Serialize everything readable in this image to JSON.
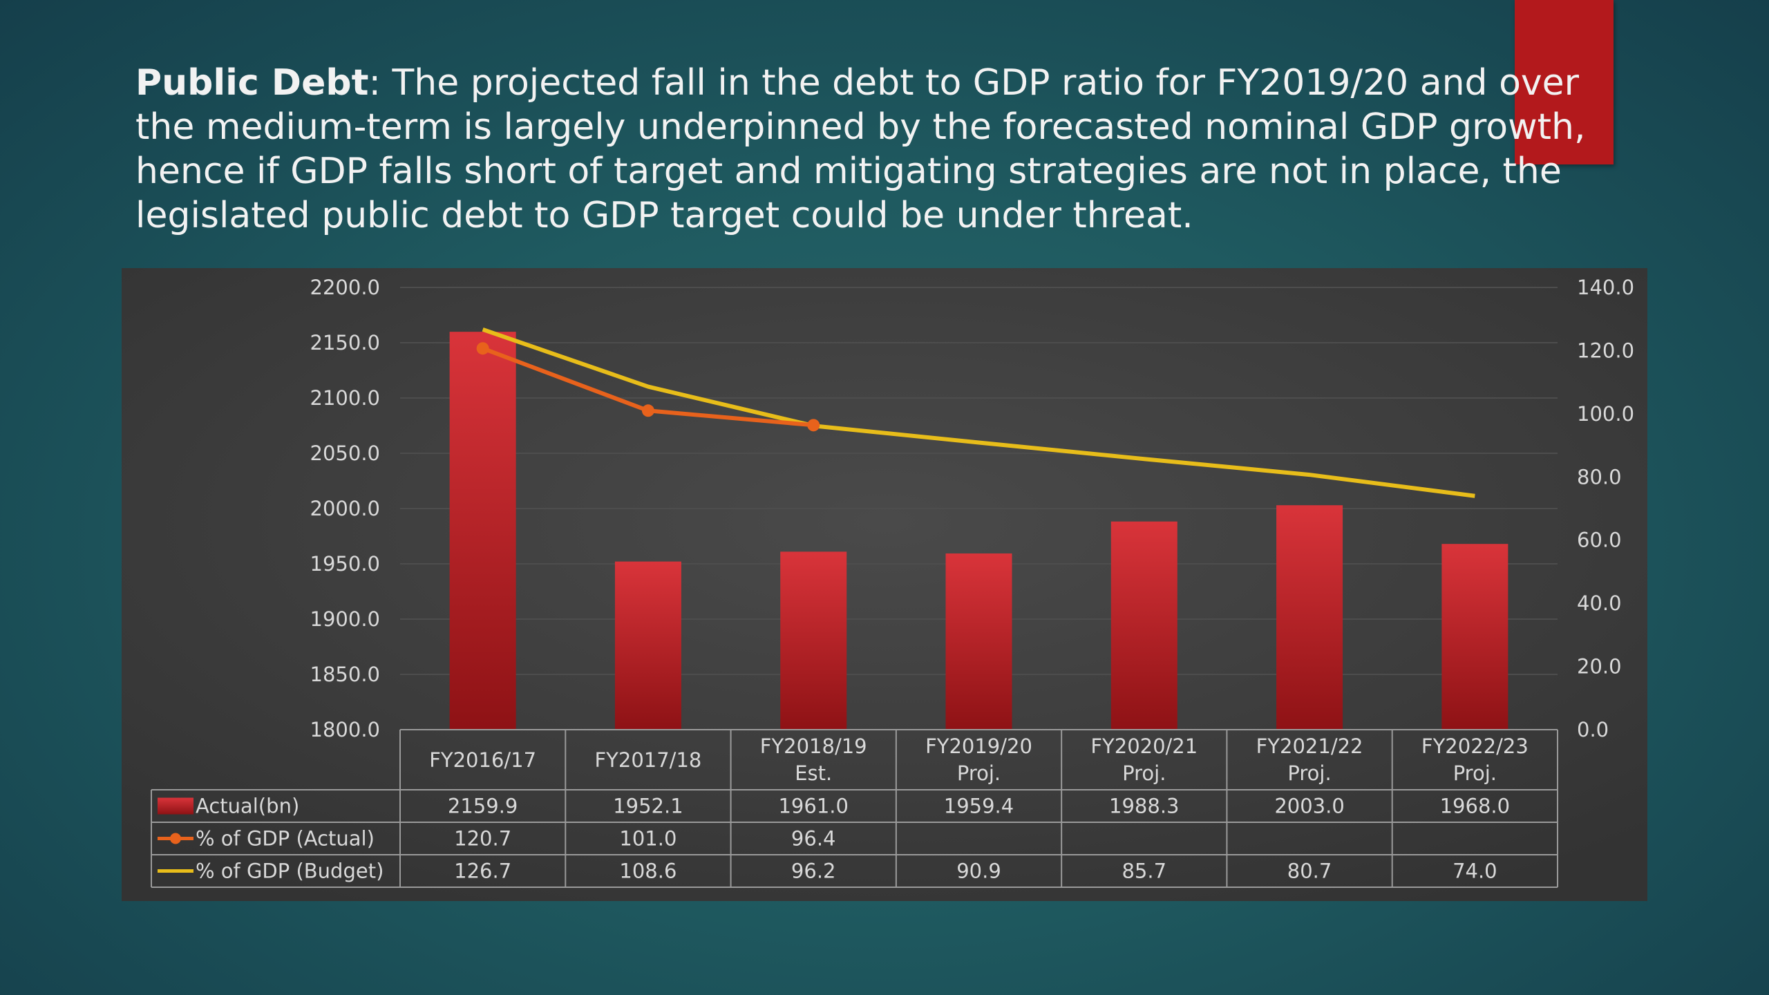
{
  "headline": {
    "bold": "Public Debt",
    "text": ": The projected fall in the debt to GDP ratio for FY2019/20 and over the medium-term is largely underpinned by the forecasted nominal  GDP growth, hence if GDP falls short of target and mitigating strategies are not in place, the legislated public debt to GDP target could be under threat."
  },
  "colors": {
    "bar": "#c8262a",
    "actual_line": "#e8621c",
    "budget_line": "#e8bd1a",
    "panel": "#333333",
    "accent_block": "#b3191c"
  },
  "chart_data": {
    "type": "bar",
    "title": "",
    "categories": [
      [
        "FY2016/17"
      ],
      [
        "FY2017/18"
      ],
      [
        "FY2018/19",
        "Est."
      ],
      [
        "FY2019/20",
        "Proj."
      ],
      [
        "FY2020/21",
        "Proj."
      ],
      [
        "FY2021/22",
        "Proj."
      ],
      [
        "FY2022/23",
        "Proj."
      ]
    ],
    "series": [
      {
        "name": "Actual(bn)",
        "type": "bar",
        "axis": "left",
        "values": [
          2159.9,
          1952.1,
          1961.0,
          1959.4,
          1988.3,
          2003.0,
          1968.0
        ],
        "labels": [
          "2159.9",
          "1952.1",
          "1961.0",
          "1959.4",
          "1988.3",
          "2003.0",
          "1968.0"
        ]
      },
      {
        "name": "% of GDP (Actual)",
        "type": "line",
        "axis": "right",
        "markers": true,
        "values": [
          120.7,
          101.0,
          96.4,
          null,
          null,
          null,
          null
        ],
        "labels": [
          "120.7",
          "101.0",
          "96.4",
          "",
          "",
          "",
          ""
        ]
      },
      {
        "name": "% of GDP (Budget)",
        "type": "line",
        "axis": "right",
        "markers": false,
        "values": [
          126.7,
          108.6,
          96.2,
          90.9,
          85.7,
          80.7,
          74.0
        ],
        "labels": [
          "126.7",
          "108.6",
          "96.2",
          "90.9",
          "85.7",
          "80.7",
          "74.0"
        ]
      }
    ],
    "y_left": {
      "min": 1800,
      "max": 2200,
      "step": 50,
      "ticks": [
        "1800.0",
        "1850.0",
        "1900.0",
        "1950.0",
        "2000.0",
        "2050.0",
        "2100.0",
        "2150.0",
        "2200.0"
      ]
    },
    "y_right": {
      "min": 0,
      "max": 140,
      "step": 20,
      "ticks": [
        "0.0",
        "20.0",
        "40.0",
        "60.0",
        "80.0",
        "100.0",
        "120.0",
        "140.0"
      ]
    },
    "grid": true,
    "legend": "data-table"
  }
}
